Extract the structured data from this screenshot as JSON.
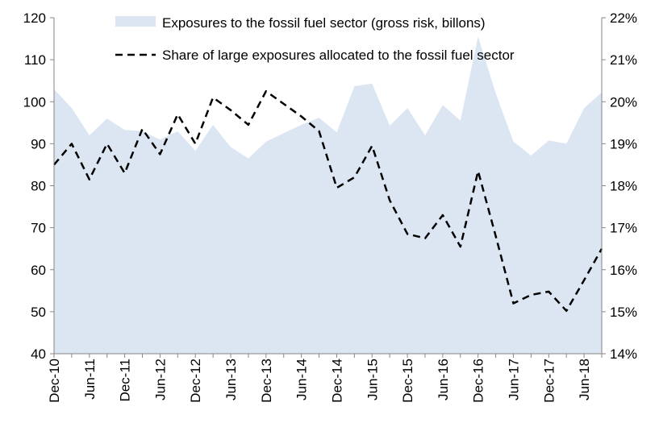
{
  "chart_data": {
    "type": "area+line",
    "title": "",
    "xlabel": "",
    "ylabel": "",
    "ylim": [
      40,
      120
    ],
    "y2lim": [
      0.14,
      0.22
    ],
    "yticks": [
      "40",
      "50",
      "60",
      "70",
      "80",
      "90",
      "100",
      "110",
      "120"
    ],
    "y2ticks": [
      "14%",
      "15%",
      "16%",
      "17%",
      "18%",
      "19%",
      "20%",
      "21%",
      "22%"
    ],
    "xticks": [
      "Dec-10",
      "Jun-11",
      "Dec-11",
      "Jun-12",
      "Dec-12",
      "Jun-13",
      "Dec-13",
      "Jun-14",
      "Dec-14",
      "Jun-15",
      "Dec-15",
      "Jun-16",
      "Dec-16",
      "Jun-17",
      "Dec-17",
      "Jun-18"
    ],
    "grid": false,
    "legend_position": "top",
    "area_color": "#dce6f2",
    "line_color": "#000000",
    "series": [
      {
        "name": "Exposures to the fossil fuel sector (gross risk, billons)",
        "type": "area",
        "axis": "left",
        "values": [
          103,
          98.5,
          92,
          96,
          93.3,
          93,
          91,
          93,
          88.3,
          94.5,
          89.2,
          86.5,
          90.5,
          92.5,
          94.5,
          96.2,
          92.7,
          103.7,
          104.3,
          94.3,
          98.5,
          92,
          99.2,
          95.5,
          115.5,
          102,
          90.5,
          87.2,
          90.8,
          90,
          98.5,
          102.2
        ]
      },
      {
        "name": "Share of large exposures allocated to the fossil fuel sector",
        "type": "line",
        "axis": "right",
        "style": "dashed",
        "values": [
          0.185,
          0.19,
          0.1815,
          0.19,
          0.183,
          0.1935,
          0.1875,
          0.197,
          0.19,
          0.201,
          0.198,
          0.1945,
          0.2025,
          0.1995,
          0.1965,
          0.193,
          0.1795,
          0.182,
          0.1895,
          0.1765,
          0.1685,
          0.1675,
          0.173,
          0.1655,
          0.1835,
          0.168,
          0.152,
          0.154,
          0.1548,
          0.1502,
          0.1575,
          0.165
        ]
      }
    ]
  }
}
